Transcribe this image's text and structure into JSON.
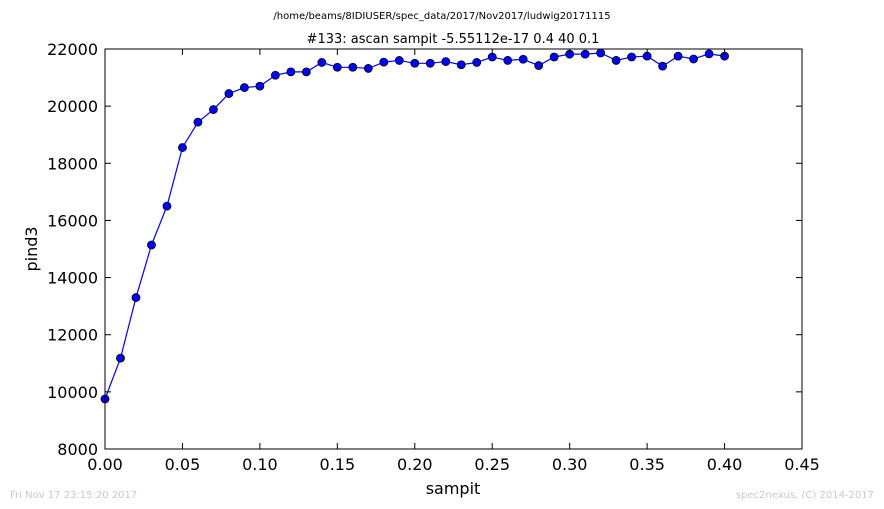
{
  "suptitle": "/home/beams/8IDIUSER/spec_data/2017/Nov2017/ludwig20171115",
  "footer": {
    "left": "Fri Nov 17 23:15:20 2017",
    "right": "spec2nexus, (C) 2014-2017"
  },
  "colors": {
    "series": "#0000ff",
    "footer": "#c8c8c8"
  },
  "chart_data": {
    "type": "line",
    "title": "#133: ascan  sampit -5.55112e-17 0.4  40 0.1",
    "xlabel": "sampit",
    "ylabel": "pind3",
    "xlim": [
      0.0,
      0.45
    ],
    "ylim": [
      8000,
      22000
    ],
    "xticks": [
      "0.00",
      "0.05",
      "0.10",
      "0.15",
      "0.20",
      "0.25",
      "0.30",
      "0.35",
      "0.40",
      "0.45"
    ],
    "yticks": [
      "8000",
      "10000",
      "12000",
      "14000",
      "16000",
      "18000",
      "20000",
      "22000"
    ],
    "grid": false,
    "legend": "none",
    "marker": "circle",
    "series": [
      {
        "x": [
          0.0,
          0.01,
          0.02,
          0.03,
          0.04,
          0.05,
          0.06,
          0.07,
          0.08,
          0.09,
          0.1,
          0.11,
          0.12,
          0.13,
          0.14,
          0.15,
          0.16,
          0.17,
          0.18,
          0.19,
          0.2,
          0.21,
          0.22,
          0.23,
          0.24,
          0.25,
          0.26,
          0.27,
          0.28,
          0.29,
          0.3,
          0.31,
          0.32,
          0.33,
          0.34,
          0.35,
          0.36,
          0.37,
          0.38,
          0.39,
          0.4
        ],
        "y": [
          9750,
          11180,
          13300,
          15140,
          16500,
          18550,
          19440,
          19880,
          20440,
          20650,
          20700,
          21080,
          21200,
          21200,
          21530,
          21360,
          21360,
          21320,
          21540,
          21600,
          21500,
          21500,
          21560,
          21450,
          21530,
          21720,
          21600,
          21640,
          21420,
          21720,
          21820,
          21820,
          21860,
          21600,
          21720,
          21750,
          21400,
          21750,
          21650,
          21830,
          21750
        ]
      }
    ]
  }
}
